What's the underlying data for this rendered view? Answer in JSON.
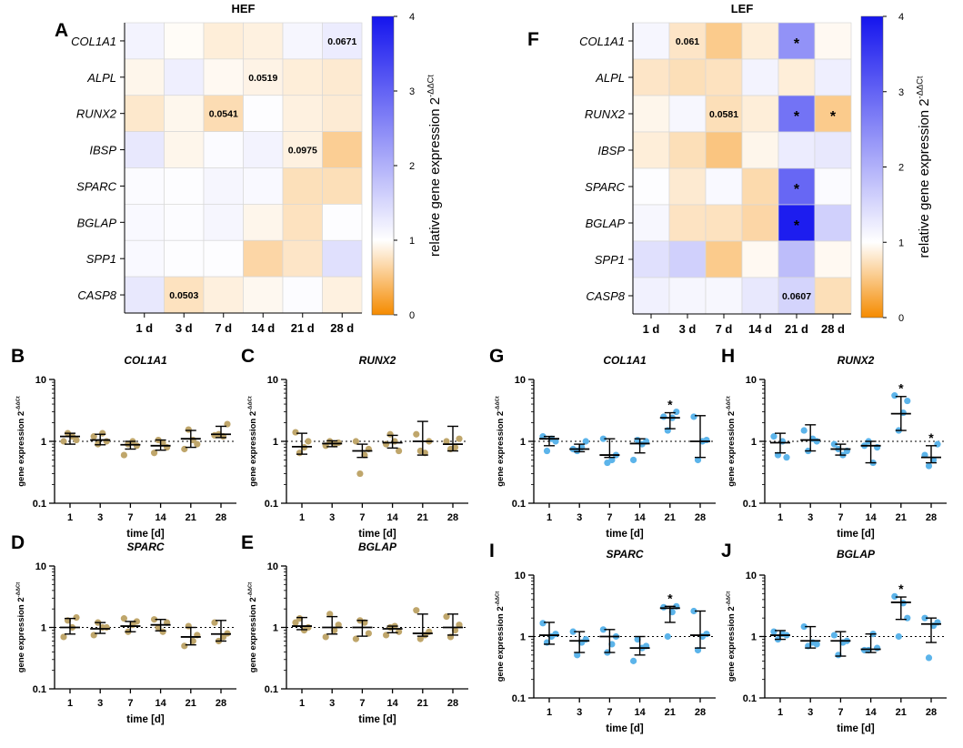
{
  "figure": {
    "x_ticks": [
      "1",
      "3",
      "7",
      "14",
      "21",
      "28"
    ],
    "y_ticks": [
      "10",
      "1",
      "0.1"
    ],
    "xlabel": "time [d]",
    "ylabel": "gene expression 2",
    "ylabel_sup": "-ΔΔCt",
    "hef_color": "#bfa66b",
    "lef_color": "#5cb4ea"
  },
  "chart_data": [
    {
      "panel": "A",
      "type": "heatmap",
      "title": "HEF",
      "rows": [
        "COL1A1",
        "ALPL",
        "RUNX2",
        "IBSP",
        "SPARC",
        "BGLAP",
        "SPP1",
        "CASP8"
      ],
      "columns": [
        "1 d",
        "3 d",
        "7 d",
        "14 d",
        "21 d",
        "28 d"
      ],
      "values": [
        [
          1.15,
          0.97,
          0.85,
          0.88,
          1.12,
          1.25
        ],
        [
          0.92,
          1.2,
          0.95,
          0.9,
          0.85,
          0.82
        ],
        [
          0.8,
          0.93,
          0.7,
          1.02,
          0.88,
          0.83
        ],
        [
          1.3,
          0.92,
          1.05,
          1.15,
          0.88,
          0.58
        ],
        [
          1.05,
          1.02,
          1.12,
          1.08,
          0.73,
          0.72
        ],
        [
          1.08,
          1.04,
          1.12,
          0.92,
          0.75,
          1.02
        ],
        [
          1.08,
          1.03,
          1.02,
          0.65,
          0.78,
          1.4
        ],
        [
          1.3,
          0.75,
          0.87,
          0.94,
          1.04,
          0.88
        ]
      ],
      "annotations": [
        {
          "row": 0,
          "col": 5,
          "text": "0.0671"
        },
        {
          "row": 1,
          "col": 3,
          "text": "0.0519"
        },
        {
          "row": 2,
          "col": 2,
          "text": "0.0541"
        },
        {
          "row": 3,
          "col": 4,
          "text": "0.0975"
        },
        {
          "row": 7,
          "col": 1,
          "text": "0.0503"
        }
      ],
      "colorbar": {
        "label": "relative gene expression 2",
        "label_sup": "-ΔΔCt",
        "ticks": [
          "0",
          "1",
          "2",
          "3",
          "4"
        ],
        "range": [
          0,
          4
        ]
      }
    },
    {
      "panel": "F",
      "type": "heatmap",
      "title": "LEF",
      "rows": [
        "COL1A1",
        "ALPL",
        "RUNX2",
        "IBSP",
        "SPARC",
        "BGLAP",
        "SPP1",
        "CASP8"
      ],
      "columns": [
        "1 d",
        "3 d",
        "7 d",
        "14 d",
        "21 d",
        "28 d"
      ],
      "values": [
        [
          1.12,
          0.78,
          0.55,
          0.85,
          2.4,
          0.95
        ],
        [
          0.78,
          0.72,
          0.75,
          1.15,
          0.85,
          1.2
        ],
        [
          0.92,
          1.1,
          0.72,
          0.85,
          2.8,
          0.55
        ],
        [
          0.85,
          0.72,
          0.5,
          0.92,
          1.25,
          1.3
        ],
        [
          1.02,
          0.82,
          1.08,
          0.68,
          2.95,
          1.05
        ],
        [
          1.1,
          0.76,
          0.75,
          0.65,
          3.9,
          1.6
        ],
        [
          1.4,
          1.6,
          0.55,
          0.95,
          1.85,
          0.95
        ],
        [
          1.18,
          1.12,
          1.1,
          1.3,
          1.55,
          0.72
        ]
      ],
      "annotations": [
        {
          "row": 0,
          "col": 1,
          "text": "0.061"
        },
        {
          "row": 0,
          "col": 4,
          "text": "*"
        },
        {
          "row": 2,
          "col": 2,
          "text": "0.0581"
        },
        {
          "row": 2,
          "col": 4,
          "text": "*"
        },
        {
          "row": 2,
          "col": 5,
          "text": "*"
        },
        {
          "row": 4,
          "col": 4,
          "text": "*"
        },
        {
          "row": 5,
          "col": 4,
          "text": "*"
        },
        {
          "row": 7,
          "col": 4,
          "text": "0.0607"
        }
      ],
      "colorbar": {
        "label": "relative gene expression 2",
        "label_sup": "-ΔΔCt",
        "ticks": [
          "0",
          "1",
          "2",
          "3",
          "4"
        ],
        "range": [
          0,
          4
        ]
      }
    },
    {
      "panel": "B",
      "type": "scatter",
      "title": "COL1A1",
      "group": "HEF",
      "yscale": "log",
      "ylim": [
        0.1,
        10
      ],
      "reference_line": 1,
      "x": [
        "1",
        "3",
        "7",
        "14",
        "21",
        "28"
      ],
      "points": [
        [
          1.0,
          1.35,
          1.2,
          1.05
        ],
        [
          1.2,
          0.9,
          1.35,
          1.0
        ],
        [
          0.6,
          0.9,
          1.0,
          0.85
        ],
        [
          0.65,
          1.05,
          0.95,
          0.8
        ],
        [
          0.75,
          1.55,
          1.05,
          0.9
        ],
        [
          1.25,
          1.3,
          1.2,
          1.9
        ]
      ],
      "median": [
        1.2,
        1.05,
        0.88,
        0.85,
        1.1,
        1.3
      ],
      "err_low": [
        0.9,
        0.88,
        0.75,
        0.72,
        0.8,
        1.15
      ],
      "err_high": [
        1.35,
        1.3,
        1.0,
        1.05,
        1.5,
        1.75
      ],
      "significance": []
    },
    {
      "panel": "C",
      "type": "scatter",
      "title": "RUNX2",
      "group": "HEF",
      "yscale": "log",
      "ylim": [
        0.1,
        10
      ],
      "reference_line": 1,
      "x": [
        "1",
        "3",
        "7",
        "14",
        "21",
        "28"
      ],
      "points": [
        [
          1.4,
          0.65,
          0.8,
          1.0
        ],
        [
          0.85,
          1.0,
          0.9,
          0.95
        ],
        [
          1.0,
          0.3,
          0.6,
          0.75
        ],
        [
          0.9,
          1.3,
          1.0,
          0.7
        ],
        [
          1.3,
          0.7,
          0.65,
          1.0
        ],
        [
          1.0,
          0.75,
          0.8,
          1.1
        ]
      ],
      "median": [
        0.82,
        0.92,
        0.7,
        0.95,
        1.0,
        0.9
      ],
      "err_low": [
        0.62,
        0.82,
        0.55,
        0.78,
        0.6,
        0.7
      ],
      "err_high": [
        1.35,
        1.02,
        0.9,
        1.25,
        2.1,
        1.75
      ],
      "significance": []
    },
    {
      "panel": "D",
      "type": "scatter",
      "title": "SPARC",
      "group": "HEF",
      "yscale": "log",
      "ylim": [
        0.1,
        10
      ],
      "reference_line": 1,
      "x": [
        "1",
        "3",
        "7",
        "14",
        "21",
        "28"
      ],
      "points": [
        [
          0.7,
          1.3,
          1.0,
          1.45
        ],
        [
          0.75,
          1.2,
          1.0,
          1.0
        ],
        [
          1.4,
          0.85,
          1.1,
          1.25
        ],
        [
          1.35,
          1.0,
          0.85,
          1.2
        ],
        [
          0.5,
          1.05,
          0.6,
          0.75
        ],
        [
          1.2,
          0.6,
          0.7,
          0.8
        ]
      ],
      "median": [
        1.0,
        0.95,
        1.05,
        1.1,
        0.7,
        0.78
      ],
      "err_low": [
        0.78,
        0.8,
        0.85,
        0.88,
        0.52,
        0.6
      ],
      "err_high": [
        1.4,
        1.2,
        1.25,
        1.35,
        1.0,
        1.3
      ],
      "significance": []
    },
    {
      "panel": "E",
      "type": "scatter",
      "title": "BGLAP",
      "group": "HEF",
      "yscale": "log",
      "ylim": [
        0.1,
        10
      ],
      "reference_line": 1,
      "x": [
        "1",
        "3",
        "7",
        "14",
        "21",
        "28"
      ],
      "points": [
        [
          1.2,
          1.4,
          0.9,
          1.0
        ],
        [
          0.7,
          1.65,
          0.9,
          1.1
        ],
        [
          0.65,
          1.3,
          1.2,
          0.8
        ],
        [
          0.75,
          1.0,
          1.05,
          0.85
        ],
        [
          1.9,
          0.65,
          0.75,
          0.85
        ],
        [
          1.5,
          0.7,
          0.9,
          1.1
        ]
      ],
      "median": [
        1.05,
        1.0,
        1.0,
        0.95,
        0.8,
        1.0
      ],
      "err_low": [
        0.92,
        0.78,
        0.72,
        0.82,
        0.72,
        0.75
      ],
      "err_high": [
        1.45,
        1.5,
        1.3,
        1.05,
        1.65,
        1.65
      ],
      "significance": []
    },
    {
      "panel": "G",
      "type": "scatter",
      "title": "COL1A1",
      "group": "LEF",
      "yscale": "log",
      "ylim": [
        0.1,
        10
      ],
      "reference_line": 1,
      "x": [
        "1",
        "3",
        "7",
        "14",
        "21",
        "28"
      ],
      "points": [
        [
          1.2,
          0.7,
          1.1,
          1.0
        ],
        [
          0.75,
          0.7,
          0.8,
          1.0
        ],
        [
          1.1,
          0.45,
          0.5,
          0.6
        ],
        [
          0.5,
          1.05,
          0.9,
          1.0
        ],
        [
          2.5,
          1.5,
          2.4,
          3.0
        ],
        [
          2.5,
          0.5,
          1.0,
          1.05
        ]
      ],
      "median": [
        1.1,
        0.75,
        0.6,
        0.92,
        2.4,
        1.0
      ],
      "err_low": [
        0.85,
        0.68,
        0.55,
        0.65,
        1.6,
        0.55
      ],
      "err_high": [
        1.2,
        0.9,
        1.1,
        1.1,
        2.9,
        2.6
      ],
      "significance": [
        {
          "index": 4,
          "text": "*"
        }
      ]
    },
    {
      "panel": "H",
      "type": "scatter",
      "title": "RUNX2",
      "group": "LEF",
      "yscale": "log",
      "ylim": [
        0.1,
        10
      ],
      "reference_line": 1,
      "x": [
        "1",
        "3",
        "7",
        "14",
        "21",
        "28"
      ],
      "points": [
        [
          1.2,
          0.6,
          1.0,
          0.55
        ],
        [
          1.5,
          0.7,
          1.1,
          1.0
        ],
        [
          0.9,
          0.75,
          0.6,
          0.7
        ],
        [
          0.85,
          1.0,
          0.45,
          0.8
        ],
        [
          5.5,
          1.5,
          2.9,
          4.5
        ],
        [
          0.6,
          0.4,
          0.5,
          0.9
        ]
      ],
      "median": [
        0.95,
        1.05,
        0.75,
        0.85,
        2.8,
        0.55
      ],
      "err_low": [
        0.65,
        0.7,
        0.6,
        0.45,
        1.5,
        0.45
      ],
      "err_high": [
        1.35,
        1.85,
        0.9,
        1.0,
        5.3,
        0.85
      ],
      "significance": [
        {
          "index": 4,
          "text": "*"
        },
        {
          "index": 5,
          "text": "*"
        }
      ]
    },
    {
      "panel": "I",
      "type": "scatter",
      "title": "SPARC",
      "group": "LEF",
      "yscale": "log",
      "ylim": [
        0.1,
        10
      ],
      "reference_line": 1,
      "x": [
        "1",
        "3",
        "7",
        "14",
        "21",
        "28"
      ],
      "points": [
        [
          1.65,
          0.8,
          1.0,
          1.1
        ],
        [
          1.2,
          0.5,
          0.8,
          0.9
        ],
        [
          1.3,
          0.55,
          0.75,
          1.0
        ],
        [
          0.4,
          0.9,
          0.65,
          0.7
        ],
        [
          3.0,
          1.0,
          2.5,
          3.1
        ],
        [
          2.6,
          0.6,
          1.0,
          1.1
        ]
      ],
      "median": [
        1.05,
        0.85,
        1.0,
        0.65,
        2.9,
        1.05
      ],
      "err_low": [
        0.75,
        0.55,
        0.55,
        0.5,
        1.7,
        0.65
      ],
      "err_high": [
        1.7,
        1.2,
        1.3,
        1.0,
        3.1,
        2.6
      ],
      "significance": [
        {
          "index": 4,
          "text": "*"
        }
      ]
    },
    {
      "panel": "J",
      "type": "scatter",
      "title": "BGLAP",
      "group": "LEF",
      "yscale": "log",
      "ylim": [
        0.1,
        10
      ],
      "reference_line": 1,
      "x": [
        "1",
        "3",
        "7",
        "14",
        "21",
        "28"
      ],
      "points": [
        [
          1.2,
          0.9,
          1.1,
          1.05
        ],
        [
          1.45,
          0.7,
          0.8,
          0.75
        ],
        [
          1.05,
          0.5,
          0.8,
          0.85
        ],
        [
          0.6,
          0.6,
          1.1,
          0.65
        ],
        [
          4.5,
          1.0,
          3.5,
          2.0
        ],
        [
          2.0,
          0.45,
          1.5,
          1.7
        ]
      ],
      "median": [
        1.05,
        0.85,
        0.85,
        0.62,
        3.6,
        1.6
      ],
      "err_low": [
        0.9,
        0.65,
        0.48,
        0.55,
        1.9,
        0.8
      ],
      "err_high": [
        1.25,
        1.45,
        1.2,
        1.1,
        4.4,
        2.0
      ],
      "significance": [
        {
          "index": 4,
          "text": "*"
        }
      ]
    }
  ]
}
